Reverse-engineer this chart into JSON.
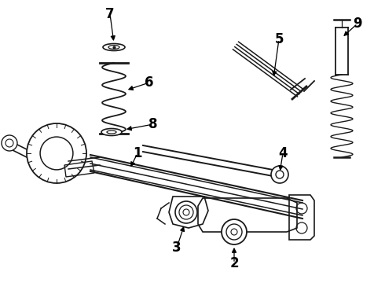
{
  "bg_color": "#ffffff",
  "line_color": "#1a1a1a",
  "label_color": "#000000",
  "figsize": [
    4.9,
    3.6
  ],
  "dpi": 100,
  "xlim": [
    0,
    490
  ],
  "ylim": [
    0,
    360
  ]
}
